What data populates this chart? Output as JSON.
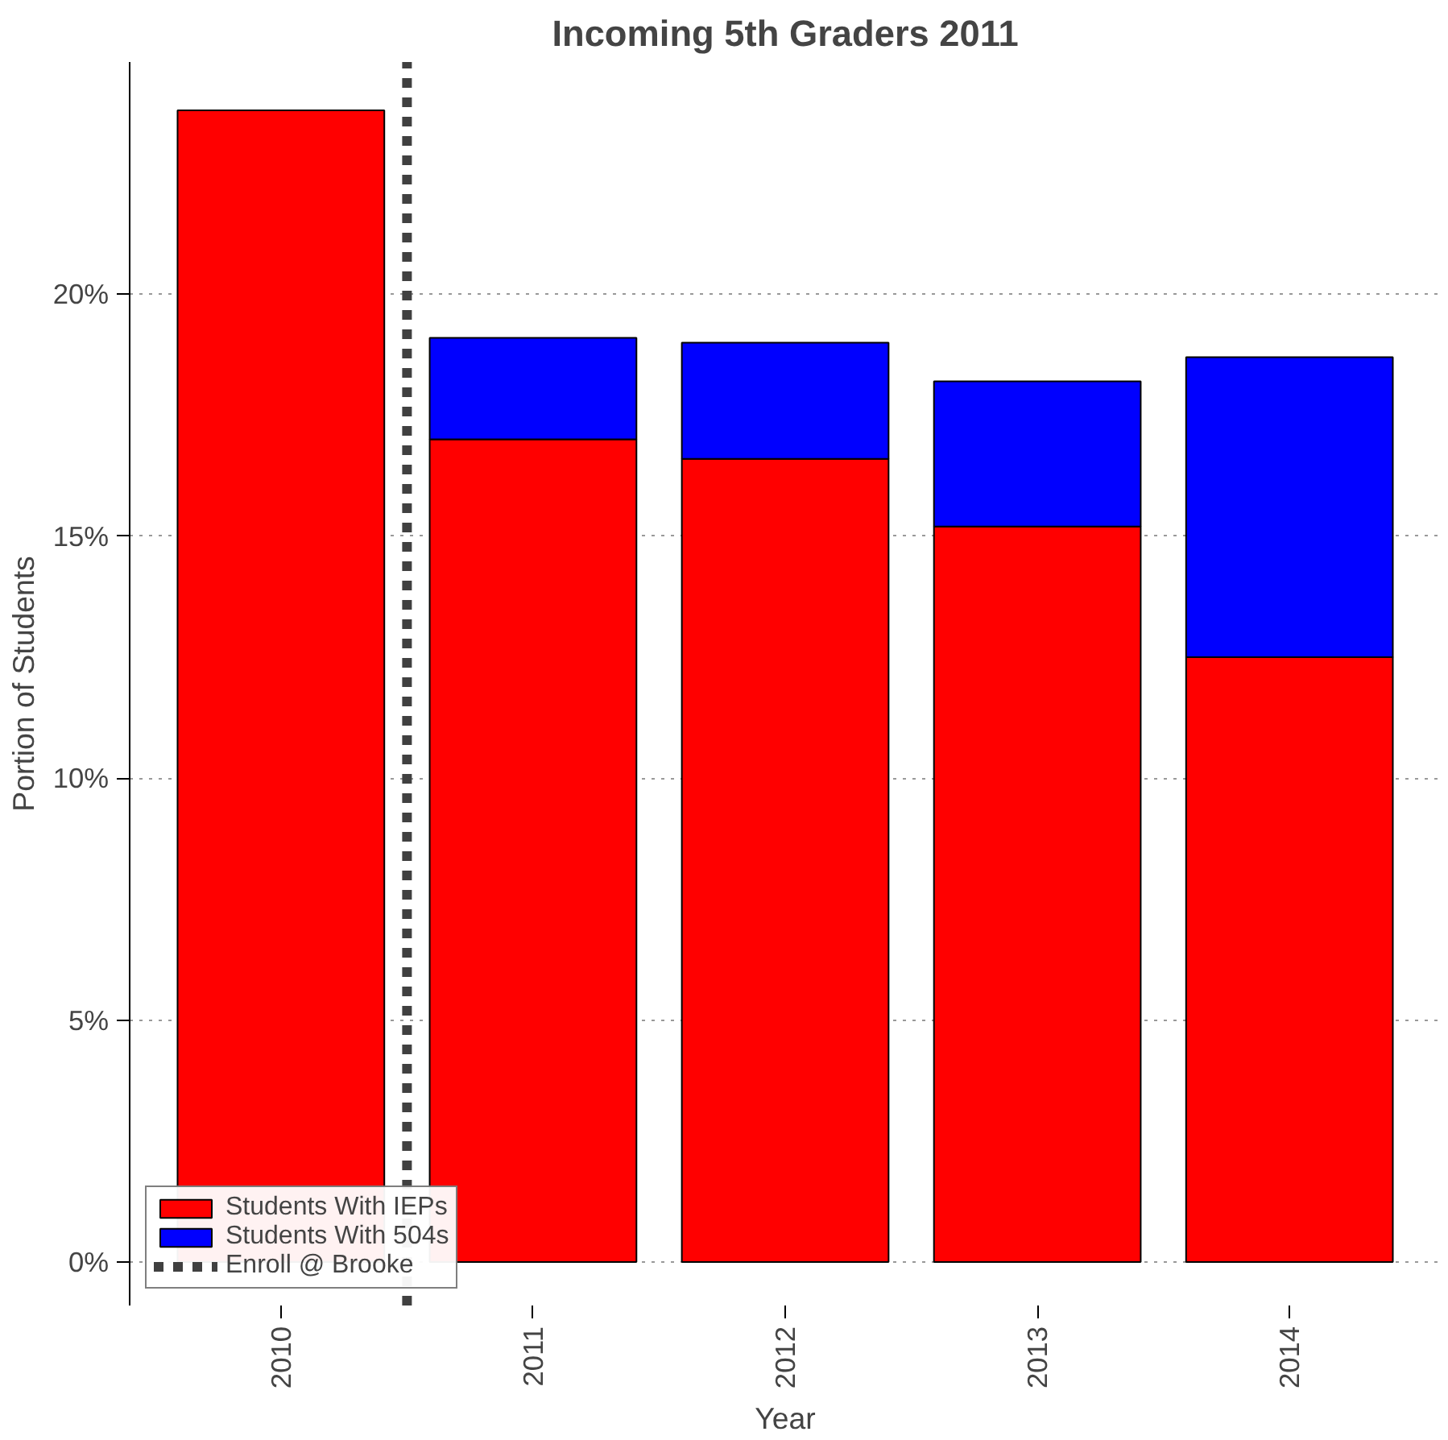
{
  "chart_data": {
    "type": "bar",
    "title": "Incoming 5th Graders 2011",
    "xlabel": "Year",
    "ylabel": "Portion of Students",
    "stacked": true,
    "x": [
      2010,
      2011,
      2012,
      2013,
      2014
    ],
    "series": [
      {
        "name": "Students With IEPs",
        "color": "#ff0000",
        "values": [
          23.8,
          17.0,
          16.6,
          15.2,
          12.5
        ]
      },
      {
        "name": "Students With 504s",
        "color": "#0000ff",
        "values": [
          null,
          2.1,
          2.4,
          3.0,
          6.2
        ]
      }
    ],
    "xlim": [
      2009.4,
      2014.6
    ],
    "xticks": [
      2010,
      2011,
      2012,
      2013,
      2014
    ],
    "ylim": [
      -0.9,
      24.8
    ],
    "yticks": [
      {
        "value": 0,
        "label": "0%"
      },
      {
        "value": 5,
        "label": "5%"
      },
      {
        "value": 10,
        "label": "10%"
      },
      {
        "value": 15,
        "label": "15%"
      },
      {
        "value": 20,
        "label": "20%"
      }
    ],
    "ref_lines": [
      {
        "axis": "x",
        "value": 2010.5,
        "label": "Enroll @ Brooke",
        "color": "#404040",
        "line_style": "dashed"
      }
    ],
    "grid": "y",
    "legend": "bottom left"
  }
}
